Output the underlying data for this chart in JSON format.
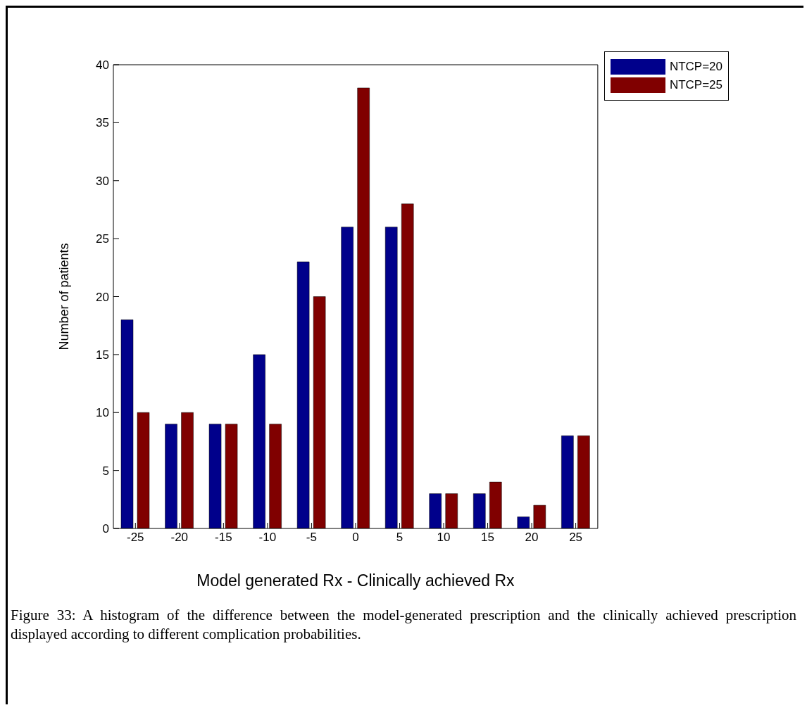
{
  "chart_data": {
    "type": "bar",
    "xlabel": "Model generated Rx - Clinically achieved Rx",
    "ylabel": "Number of patients",
    "categories": [
      "-25",
      "-20",
      "-15",
      "-10",
      "-5",
      "0",
      "5",
      "10",
      "15",
      "20",
      "25"
    ],
    "series": [
      {
        "name": "NTCP=20",
        "color": "#00008b",
        "values": [
          18,
          9,
          9,
          15,
          23,
          26,
          26,
          3,
          3,
          1,
          8
        ]
      },
      {
        "name": "NTCP=25",
        "color": "#800000",
        "values": [
          10,
          10,
          9,
          9,
          20,
          38,
          28,
          3,
          4,
          2,
          8
        ]
      }
    ],
    "ylim": [
      0,
      40
    ],
    "yticks": [
      0,
      5,
      10,
      15,
      20,
      25,
      30,
      35,
      40
    ],
    "grid": false,
    "legend": "top right",
    "annotations": [
      "Figure 33: A histogram of the difference between the model-generated prescription and the clinically achieved prescription displayed according to different complication probabilities."
    ]
  }
}
